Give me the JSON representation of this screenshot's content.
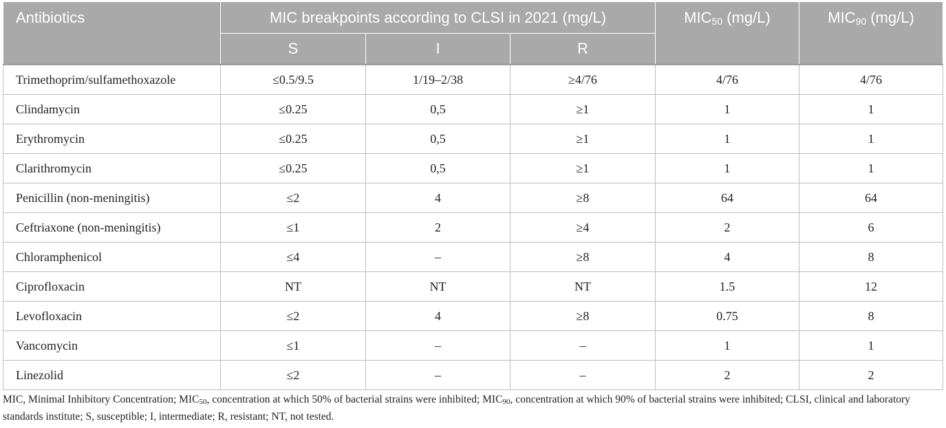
{
  "header": {
    "antibiotics": "Antibiotics",
    "breakpoints": "MIC breakpoints according to CLSI in 2021 (mg/L)",
    "mic50_main": "MIC",
    "mic50_sub": "50",
    "mic50_unit": " (mg/L)",
    "mic90_main": "MIC",
    "mic90_sub": "90",
    "mic90_unit": " (mg/L)",
    "s": "S",
    "i": "I",
    "r": "R"
  },
  "rows": [
    {
      "name": "Trimethoprim/sulfamethoxazole",
      "s": "≤0.5/9.5",
      "i": "1/19–2/38",
      "r": "≥4/76",
      "mic50": "4/76",
      "mic90": "4/76"
    },
    {
      "name": "Clindamycin",
      "s": "≤0.25",
      "i": "0,5",
      "r": "≥1",
      "mic50": "1",
      "mic90": "1"
    },
    {
      "name": "Erythromycin",
      "s": "≤0.25",
      "i": "0,5",
      "r": "≥1",
      "mic50": "1",
      "mic90": "1"
    },
    {
      "name": "Clarithromycin",
      "s": "≤0.25",
      "i": "0,5",
      "r": "≥1",
      "mic50": "1",
      "mic90": "1"
    },
    {
      "name": "Penicillin (non-meningitis)",
      "s": "≤2",
      "i": "4",
      "r": "≥8",
      "mic50": "64",
      "mic90": "64"
    },
    {
      "name": "Ceftriaxone (non-meningitis)",
      "s": "≤1",
      "i": "2",
      "r": "≥4",
      "mic50": "2",
      "mic90": "6"
    },
    {
      "name": "Chloramphenicol",
      "s": "≤4",
      "i": "–",
      "r": "≥8",
      "mic50": "4",
      "mic90": "8"
    },
    {
      "name": "Ciprofloxacin",
      "s": "NT",
      "i": "NT",
      "r": "NT",
      "mic50": "1.5",
      "mic90": "12"
    },
    {
      "name": "Levofloxacin",
      "s": "≤2",
      "i": "4",
      "r": "≥8",
      "mic50": "0.75",
      "mic90": "8"
    },
    {
      "name": "Vancomycin",
      "s": "≤1",
      "i": "–",
      "r": "–",
      "mic50": "1",
      "mic90": "1"
    },
    {
      "name": "Linezolid",
      "s": "≤2",
      "i": "–",
      "r": "–",
      "mic50": "2",
      "mic90": "2"
    }
  ],
  "footnote": {
    "p1": "MIC, Minimal Inhibitory Concentration; MIC",
    "sub1": "50",
    "p2": ", concentration at which 50% of bacterial strains were inhibited; MIC",
    "sub2": "90",
    "p3": ", concentration at which 90% of bacterial strains were inhibited; CLSI, clinical and laboratory standards institute; S, susceptible; I, intermediate; R, resistant; NT, not tested."
  }
}
